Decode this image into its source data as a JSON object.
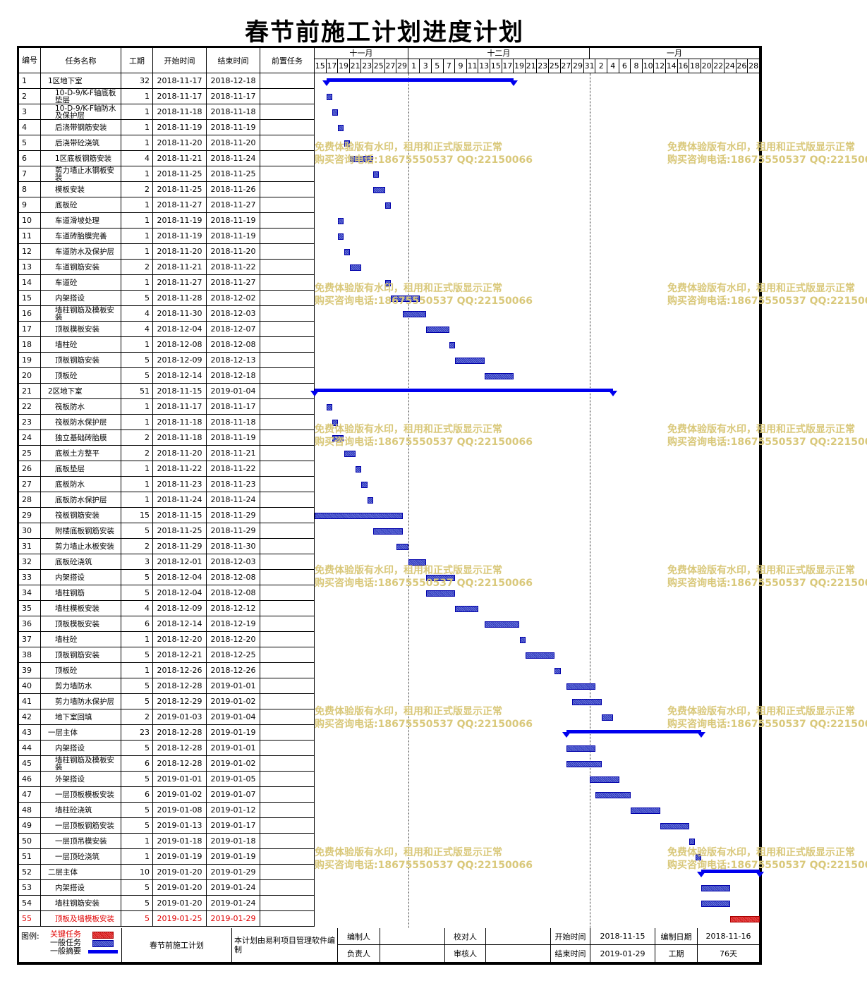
{
  "title": "春节前施工计划进度计划",
  "headers": {
    "no": "编号",
    "name": "任务名称",
    "dur": "工期",
    "start": "开始时间",
    "end": "结束时间",
    "pred": "前置任务"
  },
  "months": [
    "十一月",
    "十二月",
    "一月"
  ],
  "days": [
    "15",
    "17",
    "19",
    "21",
    "23",
    "25",
    "27",
    "29",
    "1",
    "3",
    "5",
    "7",
    "9",
    "11",
    "13",
    "15",
    "17",
    "19",
    "21",
    "23",
    "25",
    "27",
    "29",
    "31",
    "2",
    "4",
    "6",
    "8",
    "10",
    "12",
    "14",
    "16",
    "18",
    "20",
    "22",
    "24",
    "26",
    "28"
  ],
  "tasks": [
    {
      "no": "1",
      "name": "1区地下室",
      "dur": "32",
      "start": "2018-11-17",
      "end": "2018-12-18",
      "type": "summary",
      "indent": 0
    },
    {
      "no": "2",
      "name": "10-D-9/K-F轴底板垫层",
      "dur": "1",
      "start": "2018-11-17",
      "end": "2018-11-17",
      "type": "task",
      "indent": 1
    },
    {
      "no": "3",
      "name": "10-D-9/K-F轴防水及保护层",
      "dur": "1",
      "start": "2018-11-18",
      "end": "2018-11-18",
      "type": "task",
      "indent": 1
    },
    {
      "no": "4",
      "name": "后浇带钢筋安装",
      "dur": "1",
      "start": "2018-11-19",
      "end": "2018-11-19",
      "type": "task",
      "indent": 1
    },
    {
      "no": "5",
      "name": "后浇带砼浇筑",
      "dur": "1",
      "start": "2018-11-20",
      "end": "2018-11-20",
      "type": "task",
      "indent": 1
    },
    {
      "no": "6",
      "name": "1区底板钢筋安装",
      "dur": "4",
      "start": "2018-11-21",
      "end": "2018-11-24",
      "type": "task",
      "indent": 1
    },
    {
      "no": "7",
      "name": "剪力墙止水钢板安装",
      "dur": "1",
      "start": "2018-11-25",
      "end": "2018-11-25",
      "type": "task",
      "indent": 1
    },
    {
      "no": "8",
      "name": "模板安装",
      "dur": "2",
      "start": "2018-11-25",
      "end": "2018-11-26",
      "type": "task",
      "indent": 1
    },
    {
      "no": "9",
      "name": "底板砼",
      "dur": "1",
      "start": "2018-11-27",
      "end": "2018-11-27",
      "type": "task",
      "indent": 1
    },
    {
      "no": "10",
      "name": "车道滑坡处理",
      "dur": "1",
      "start": "2018-11-19",
      "end": "2018-11-19",
      "type": "task",
      "indent": 1
    },
    {
      "no": "11",
      "name": "车道砖胎膜完善",
      "dur": "1",
      "start": "2018-11-19",
      "end": "2018-11-19",
      "type": "task",
      "indent": 1
    },
    {
      "no": "12",
      "name": "车道防水及保护层",
      "dur": "1",
      "start": "2018-11-20",
      "end": "2018-11-20",
      "type": "task",
      "indent": 1
    },
    {
      "no": "13",
      "name": "车道钢筋安装",
      "dur": "2",
      "start": "2018-11-21",
      "end": "2018-11-22",
      "type": "task",
      "indent": 1
    },
    {
      "no": "14",
      "name": "车道砼",
      "dur": "1",
      "start": "2018-11-27",
      "end": "2018-11-27",
      "type": "task",
      "indent": 1
    },
    {
      "no": "15",
      "name": "内架搭设",
      "dur": "5",
      "start": "2018-11-28",
      "end": "2018-12-02",
      "type": "task",
      "indent": 1
    },
    {
      "no": "16",
      "name": "墙柱钢筋及模板安装",
      "dur": "4",
      "start": "2018-11-30",
      "end": "2018-12-03",
      "type": "task",
      "indent": 1
    },
    {
      "no": "17",
      "name": "顶板模板安装",
      "dur": "4",
      "start": "2018-12-04",
      "end": "2018-12-07",
      "type": "task",
      "indent": 1
    },
    {
      "no": "18",
      "name": "墙柱砼",
      "dur": "1",
      "start": "2018-12-08",
      "end": "2018-12-08",
      "type": "task",
      "indent": 1
    },
    {
      "no": "19",
      "name": "顶板钢筋安装",
      "dur": "5",
      "start": "2018-12-09",
      "end": "2018-12-13",
      "type": "task",
      "indent": 1
    },
    {
      "no": "20",
      "name": "顶板砼",
      "dur": "5",
      "start": "2018-12-14",
      "end": "2018-12-18",
      "type": "task",
      "indent": 1
    },
    {
      "no": "21",
      "name": "2区地下室",
      "dur": "51",
      "start": "2018-11-15",
      "end": "2019-01-04",
      "type": "summary",
      "indent": 0
    },
    {
      "no": "22",
      "name": "筏板防水",
      "dur": "1",
      "start": "2018-11-17",
      "end": "2018-11-17",
      "type": "task",
      "indent": 1
    },
    {
      "no": "23",
      "name": "筏板防水保护层",
      "dur": "1",
      "start": "2018-11-18",
      "end": "2018-11-18",
      "type": "task",
      "indent": 1
    },
    {
      "no": "24",
      "name": "独立基础砖胎膜",
      "dur": "2",
      "start": "2018-11-18",
      "end": "2018-11-19",
      "type": "task",
      "indent": 1
    },
    {
      "no": "25",
      "name": "底板土方整平",
      "dur": "2",
      "start": "2018-11-20",
      "end": "2018-11-21",
      "type": "task",
      "indent": 1
    },
    {
      "no": "26",
      "name": "底板垫层",
      "dur": "1",
      "start": "2018-11-22",
      "end": "2018-11-22",
      "type": "task",
      "indent": 1
    },
    {
      "no": "27",
      "name": "底板防水",
      "dur": "1",
      "start": "2018-11-23",
      "end": "2018-11-23",
      "type": "task",
      "indent": 1
    },
    {
      "no": "28",
      "name": "底板防水保护层",
      "dur": "1",
      "start": "2018-11-24",
      "end": "2018-11-24",
      "type": "task",
      "indent": 1
    },
    {
      "no": "29",
      "name": "筏板钢筋安装",
      "dur": "15",
      "start": "2018-11-15",
      "end": "2018-11-29",
      "type": "task",
      "indent": 1
    },
    {
      "no": "30",
      "name": "附楼底板钢筋安装",
      "dur": "5",
      "start": "2018-11-25",
      "end": "2018-11-29",
      "type": "task",
      "indent": 1
    },
    {
      "no": "31",
      "name": "剪力墙止水板安装",
      "dur": "2",
      "start": "2018-11-29",
      "end": "2018-11-30",
      "type": "task",
      "indent": 1
    },
    {
      "no": "32",
      "name": "底板砼浇筑",
      "dur": "3",
      "start": "2018-12-01",
      "end": "2018-12-03",
      "type": "task",
      "indent": 1
    },
    {
      "no": "33",
      "name": "内架搭设",
      "dur": "5",
      "start": "2018-12-04",
      "end": "2018-12-08",
      "type": "task",
      "indent": 1
    },
    {
      "no": "34",
      "name": "墙柱钢筋",
      "dur": "5",
      "start": "2018-12-04",
      "end": "2018-12-08",
      "type": "task",
      "indent": 1
    },
    {
      "no": "35",
      "name": "墙柱模板安装",
      "dur": "4",
      "start": "2018-12-09",
      "end": "2018-12-12",
      "type": "task",
      "indent": 1
    },
    {
      "no": "36",
      "name": "顶板模板安装",
      "dur": "6",
      "start": "2018-12-14",
      "end": "2018-12-19",
      "type": "task",
      "indent": 1
    },
    {
      "no": "37",
      "name": "墙柱砼",
      "dur": "1",
      "start": "2018-12-20",
      "end": "2018-12-20",
      "type": "task",
      "indent": 1
    },
    {
      "no": "38",
      "name": "顶板钢筋安装",
      "dur": "5",
      "start": "2018-12-21",
      "end": "2018-12-25",
      "type": "task",
      "indent": 1
    },
    {
      "no": "39",
      "name": "顶板砼",
      "dur": "1",
      "start": "2018-12-26",
      "end": "2018-12-26",
      "type": "task",
      "indent": 1
    },
    {
      "no": "40",
      "name": "剪力墙防水",
      "dur": "5",
      "start": "2018-12-28",
      "end": "2019-01-01",
      "type": "task",
      "indent": 1
    },
    {
      "no": "41",
      "name": "剪力墙防水保护层",
      "dur": "5",
      "start": "2018-12-29",
      "end": "2019-01-02",
      "type": "task",
      "indent": 1
    },
    {
      "no": "42",
      "name": "地下室回填",
      "dur": "2",
      "start": "2019-01-03",
      "end": "2019-01-04",
      "type": "task",
      "indent": 1
    },
    {
      "no": "43",
      "name": "一层主体",
      "dur": "23",
      "start": "2018-12-28",
      "end": "2019-01-19",
      "type": "summary",
      "indent": 0
    },
    {
      "no": "44",
      "name": "内架搭设",
      "dur": "5",
      "start": "2018-12-28",
      "end": "2019-01-01",
      "type": "task",
      "indent": 1
    },
    {
      "no": "45",
      "name": "墙柱钢筋及模板安装",
      "dur": "6",
      "start": "2018-12-28",
      "end": "2019-01-02",
      "type": "task",
      "indent": 1
    },
    {
      "no": "46",
      "name": "外架搭设",
      "dur": "5",
      "start": "2019-01-01",
      "end": "2019-01-05",
      "type": "task",
      "indent": 1
    },
    {
      "no": "47",
      "name": "一层顶板模板安装",
      "dur": "6",
      "start": "2019-01-02",
      "end": "2019-01-07",
      "type": "task",
      "indent": 1
    },
    {
      "no": "48",
      "name": "墙柱砼浇筑",
      "dur": "5",
      "start": "2019-01-08",
      "end": "2019-01-12",
      "type": "task",
      "indent": 1
    },
    {
      "no": "49",
      "name": "一层顶板钢筋安装",
      "dur": "5",
      "start": "2019-01-13",
      "end": "2019-01-17",
      "type": "task",
      "indent": 1
    },
    {
      "no": "50",
      "name": "一层顶吊模安装",
      "dur": "1",
      "start": "2019-01-18",
      "end": "2019-01-18",
      "type": "task",
      "indent": 1
    },
    {
      "no": "51",
      "name": "一层顶砼浇筑",
      "dur": "1",
      "start": "2019-01-19",
      "end": "2019-01-19",
      "type": "task",
      "indent": 1
    },
    {
      "no": "52",
      "name": "二层主体",
      "dur": "10",
      "start": "2019-01-20",
      "end": "2019-01-29",
      "type": "summary",
      "indent": 0
    },
    {
      "no": "53",
      "name": "内架搭设",
      "dur": "5",
      "start": "2019-01-20",
      "end": "2019-01-24",
      "type": "task",
      "indent": 1
    },
    {
      "no": "54",
      "name": "墙柱钢筋安装",
      "dur": "5",
      "start": "2019-01-20",
      "end": "2019-01-24",
      "type": "task",
      "indent": 1
    },
    {
      "no": "55",
      "name": "顶板及墙模板安装",
      "dur": "5",
      "start": "2019-01-25",
      "end": "2019-01-29",
      "type": "critical",
      "indent": 1
    }
  ],
  "watermark": {
    "line1": "免费体验版有水印，租用和正式版显示正常",
    "line2": "购买咨询电话:18675550537 QQ:22150066"
  },
  "legend": {
    "label": "图例:",
    "critical": "关键任务",
    "normal": "一般任务",
    "summary": "一般摘要",
    "critical_color": "#e00000",
    "task_color": "#4a56c8",
    "summary_color": "#0000ee"
  },
  "footer": {
    "plan_name": "春节前施工计划",
    "software": "本计划由易利项目管理软件编制",
    "compiler_label": "编制人",
    "compiler": "",
    "checker_label": "校对人",
    "checker": "",
    "start_label": "开始时间",
    "start_value": "2018-11-15",
    "date_label": "编制日期",
    "date_value": "2018-11-16",
    "owner_label": "负责人",
    "owner": "",
    "reviewer_label": "审核人",
    "reviewer": "",
    "end_label": "结束时间",
    "end_value": "2019-01-29",
    "dur_label": "工期",
    "dur_value": "76天"
  }
}
